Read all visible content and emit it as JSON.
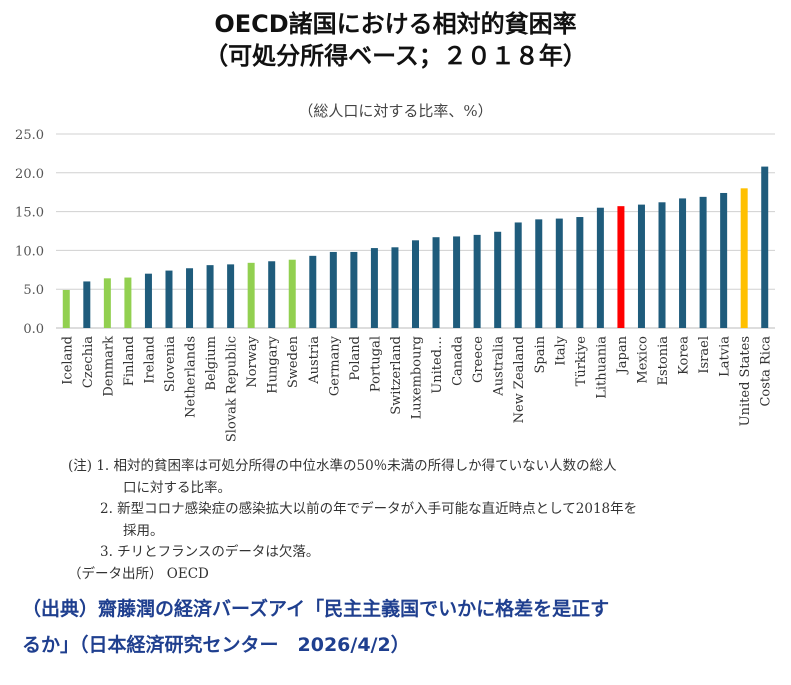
{
  "title_line1": "OECD諸国における相対的貧困率",
  "title_line2": "（可処分所得ベース；２０１８年）",
  "chart_data": {
    "type": "bar",
    "title": "",
    "subtitle": "（総人口に対する比率、%）",
    "xlabel": "",
    "ylabel": "",
    "ylim": [
      0,
      25
    ],
    "yticks": [
      "0.0",
      "5.0",
      "10.0",
      "15.0",
      "20.0",
      "25.0"
    ],
    "grid": true,
    "categories": [
      "Iceland",
      "Czechia",
      "Denmark",
      "Finland",
      "Ireland",
      "Slovenia",
      "Netherlands",
      "Belgium",
      "Slovak Republic",
      "Norway",
      "Hungary",
      "Sweden",
      "Austria",
      "Germany",
      "Poland",
      "Portugal",
      "Switzerland",
      "Luxembourg",
      "United…",
      "Canada",
      "Greece",
      "Australia",
      "New Zealand",
      "Spain",
      "Italy",
      "Türkiye",
      "Lithuania",
      "Japan",
      "Mexico",
      "Estonia",
      "Korea",
      "Israel",
      "Latvia",
      "United States",
      "Costa Rica"
    ],
    "values": [
      4.9,
      6.0,
      6.4,
      6.5,
      7.0,
      7.4,
      7.7,
      8.1,
      8.2,
      8.4,
      8.6,
      8.8,
      9.3,
      9.8,
      9.8,
      10.3,
      10.4,
      11.3,
      11.7,
      11.8,
      12.0,
      12.4,
      13.6,
      14.0,
      14.1,
      14.3,
      15.5,
      15.7,
      15.9,
      16.2,
      16.7,
      16.9,
      17.4,
      18.0,
      20.8
    ],
    "colors": [
      "#92d050",
      "#1f5c7c",
      "#92d050",
      "#92d050",
      "#1f5c7c",
      "#1f5c7c",
      "#1f5c7c",
      "#1f5c7c",
      "#1f5c7c",
      "#92d050",
      "#1f5c7c",
      "#92d050",
      "#1f5c7c",
      "#1f5c7c",
      "#1f5c7c",
      "#1f5c7c",
      "#1f5c7c",
      "#1f5c7c",
      "#1f5c7c",
      "#1f5c7c",
      "#1f5c7c",
      "#1f5c7c",
      "#1f5c7c",
      "#1f5c7c",
      "#1f5c7c",
      "#1f5c7c",
      "#1f5c7c",
      "#ff0000",
      "#1f5c7c",
      "#1f5c7c",
      "#1f5c7c",
      "#1f5c7c",
      "#1f5c7c",
      "#ffc000",
      "#1f5c7c"
    ]
  },
  "notes": {
    "line1": "(注) 1. 相対的貧困率は可処分所得の中位水準の50％未満の所得しか得ていない人数の総人",
    "line2": "口に対する比率。",
    "line3": "2. 新型コロナ感染症の感染拡大以前の年でデータが入手可能な直近時点として2018年を",
    "line4": "採用。",
    "line5": "3. チリとフランスのデータは欠落。",
    "line6": "（データ出所） OECD"
  },
  "source": {
    "line1": "（出典）齋藤潤の経済バーズアイ「民主主義国でいかに格差を是正す",
    "line2": "るか」（日本経済研究センター　2026/4/2）"
  }
}
